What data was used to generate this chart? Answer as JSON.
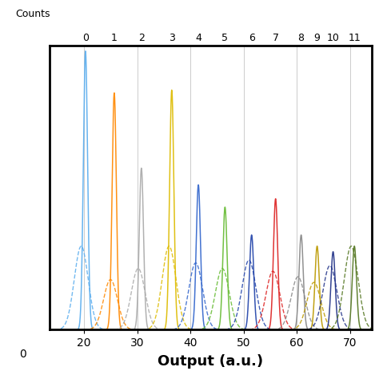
{
  "xlabel": "Output (a.u.)",
  "background_color": "#ffffff",
  "grid_color": "#cccccc",
  "count_labels": [
    "0",
    "1",
    "2",
    "3",
    "4",
    "5",
    "6",
    "7",
    "8",
    "9",
    "10",
    "11"
  ],
  "colors": [
    "#5aadee",
    "#ff8800",
    "#aaaaaa",
    "#ddbb00",
    "#3366cc",
    "#66bb33",
    "#2244aa",
    "#dd2222",
    "#888888",
    "#bb9900",
    "#223388",
    "#557722"
  ],
  "peak_positions_solid": [
    20.3,
    25.7,
    30.8,
    36.5,
    41.5,
    46.5,
    51.5,
    56.0,
    60.8,
    63.8,
    66.8,
    70.8
  ],
  "peak_positions_dash": [
    19.5,
    25.0,
    30.2,
    36.0,
    41.0,
    46.0,
    51.0,
    55.5,
    60.2,
    63.2,
    66.2,
    70.2
  ],
  "peak_heights_solid": [
    1.0,
    0.85,
    0.58,
    0.86,
    0.52,
    0.44,
    0.34,
    0.47,
    0.34,
    0.3,
    0.28,
    0.3
  ],
  "peak_heights_dash": [
    0.3,
    0.18,
    0.22,
    0.3,
    0.24,
    0.22,
    0.25,
    0.21,
    0.19,
    0.17,
    0.23,
    0.3
  ],
  "sigma_solid": 0.4,
  "sigma_dash": 1.3,
  "xlim_plot": [
    13.5,
    74
  ],
  "xlim_full": [
    0,
    74
  ],
  "ylim": [
    0,
    1.02
  ],
  "xticks_bottom": [
    0,
    20,
    30,
    40,
    50,
    60,
    70
  ],
  "top_tick_positions": [
    20.3,
    25.7,
    30.8,
    36.5,
    41.5,
    46.5,
    51.5,
    56.0,
    60.8,
    63.8,
    66.8,
    70.8
  ]
}
